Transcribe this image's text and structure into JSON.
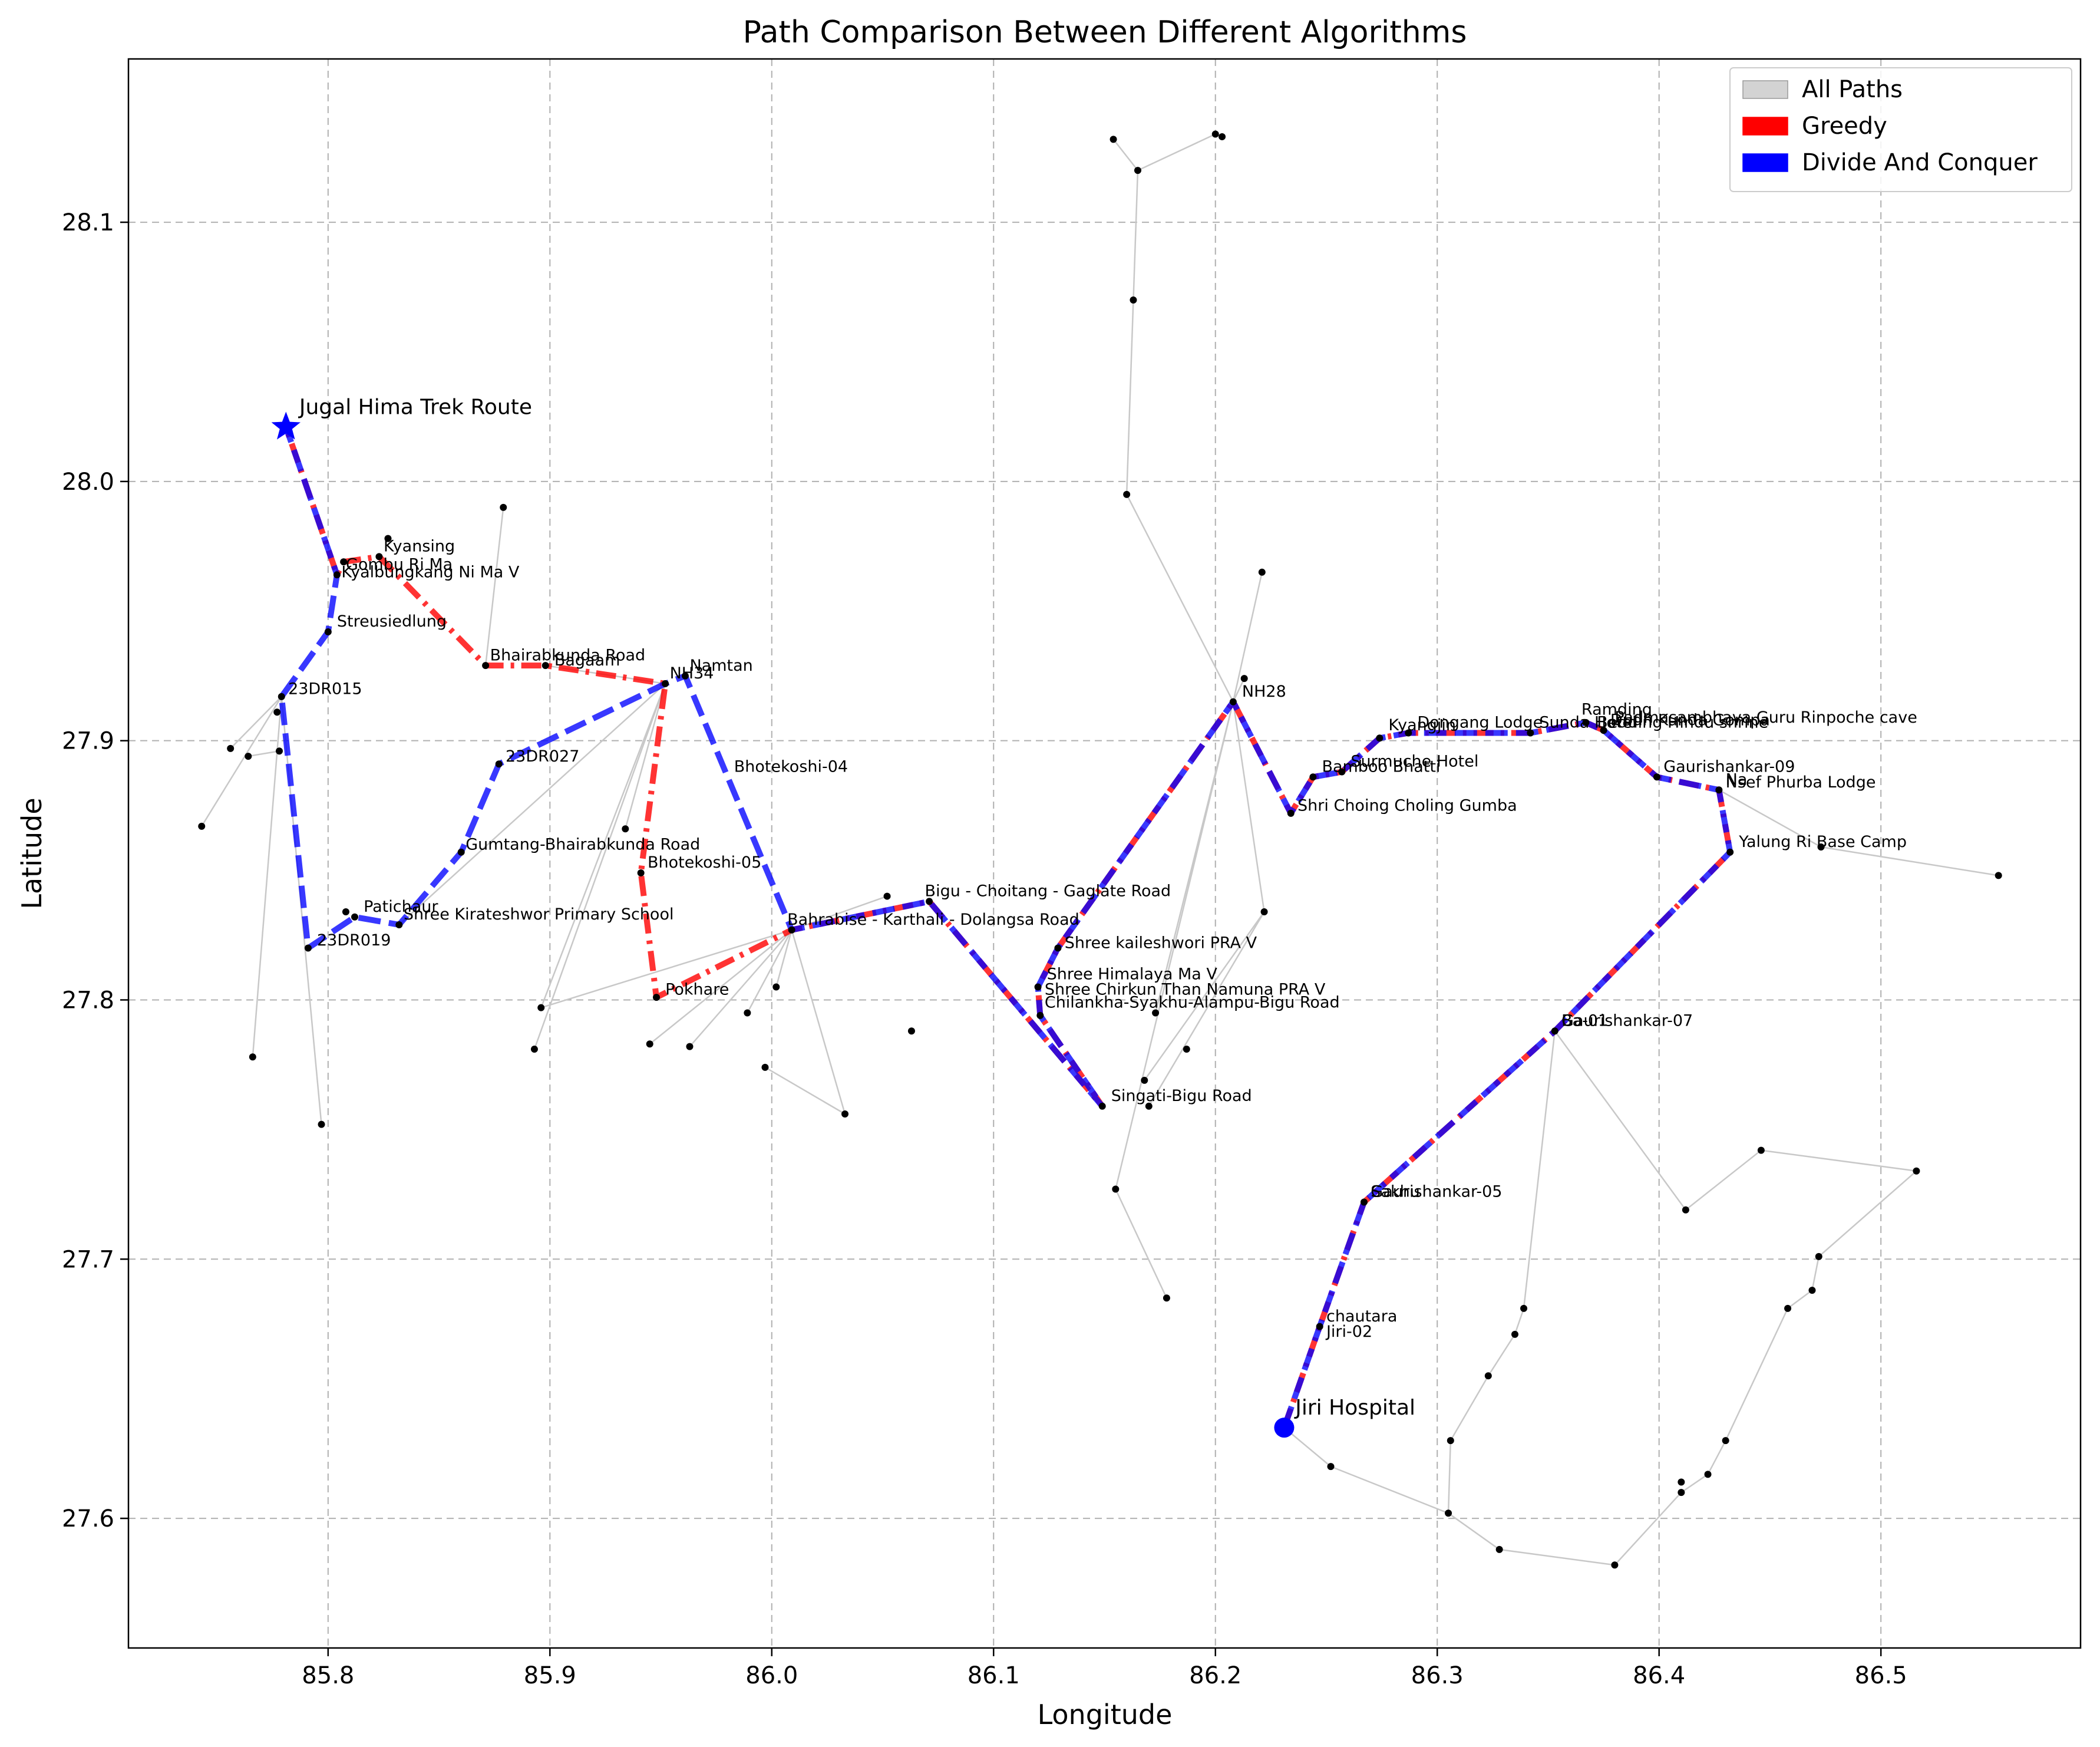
{
  "chart_data": {
    "type": "network",
    "title": "Path Comparison Between Different Algorithms",
    "xlabel": "Longitude",
    "ylabel": "Latitude",
    "xlim": [
      85.71,
      86.59
    ],
    "ylim": [
      27.55,
      28.163
    ],
    "xticks": [
      85.8,
      85.9,
      86.0,
      86.1,
      86.2,
      86.3,
      86.4,
      86.5
    ],
    "yticks": [
      27.6,
      27.7,
      27.8,
      27.9,
      28.0,
      28.1
    ],
    "grid": true,
    "legend_position": "top-right",
    "legend": [
      {
        "label": "All Paths",
        "color": "#d3d3d3"
      },
      {
        "label": "Greedy",
        "color": "#ff0000"
      },
      {
        "label": "Divide And Conquer",
        "color": "#0000ff"
      }
    ],
    "start": {
      "label": "Jiri Hospital",
      "x": 86.231,
      "y": 27.635
    },
    "end": {
      "label": "Jugal Hima Trek Route",
      "x": 85.781,
      "y": 28.021
    },
    "greedy_path": [
      [
        86.231,
        27.635
      ],
      [
        86.247,
        27.674
      ],
      [
        86.267,
        27.722
      ],
      [
        86.353,
        27.788
      ],
      [
        86.432,
        27.857
      ],
      [
        86.427,
        27.881
      ],
      [
        86.399,
        27.886
      ],
      [
        86.375,
        27.904
      ],
      [
        86.367,
        27.907
      ],
      [
        86.342,
        27.903
      ],
      [
        86.287,
        27.903
      ],
      [
        86.274,
        27.901
      ],
      [
        86.257,
        27.888
      ],
      [
        86.244,
        27.886
      ],
      [
        86.234,
        27.872
      ],
      [
        86.208,
        27.915
      ],
      [
        86.129,
        27.82
      ],
      [
        86.12,
        27.805
      ],
      [
        86.121,
        27.794
      ],
      [
        86.149,
        27.759
      ],
      [
        86.071,
        27.838
      ],
      [
        86.009,
        27.827
      ],
      [
        85.948,
        27.801
      ],
      [
        85.941,
        27.849
      ],
      [
        85.952,
        27.922
      ],
      [
        85.898,
        27.929
      ],
      [
        85.871,
        27.929
      ],
      [
        85.823,
        27.971
      ],
      [
        85.807,
        27.969
      ],
      [
        85.804,
        27.964
      ],
      [
        85.781,
        28.021
      ]
    ],
    "dc_path": [
      [
        86.231,
        27.635
      ],
      [
        86.247,
        27.674
      ],
      [
        86.267,
        27.722
      ],
      [
        86.353,
        27.788
      ],
      [
        86.432,
        27.857
      ],
      [
        86.427,
        27.881
      ],
      [
        86.399,
        27.886
      ],
      [
        86.375,
        27.904
      ],
      [
        86.367,
        27.907
      ],
      [
        86.342,
        27.903
      ],
      [
        86.287,
        27.903
      ],
      [
        86.274,
        27.901
      ],
      [
        86.257,
        27.888
      ],
      [
        86.244,
        27.886
      ],
      [
        86.234,
        27.872
      ],
      [
        86.208,
        27.915
      ],
      [
        86.129,
        27.82
      ],
      [
        86.12,
        27.805
      ],
      [
        86.121,
        27.794
      ],
      [
        86.149,
        27.759
      ],
      [
        86.071,
        27.838
      ],
      [
        86.009,
        27.827
      ],
      [
        85.961,
        27.925
      ],
      [
        85.952,
        27.922
      ],
      [
        85.877,
        27.891
      ],
      [
        85.86,
        27.857
      ],
      [
        85.832,
        27.829
      ],
      [
        85.812,
        27.832
      ],
      [
        85.791,
        27.82
      ],
      [
        85.779,
        27.917
      ],
      [
        85.8,
        27.942
      ],
      [
        85.804,
        27.964
      ],
      [
        85.781,
        28.021
      ]
    ],
    "edges": [
      [
        [
          85.743,
          27.867
        ],
        [
          85.779,
          27.917
        ]
      ],
      [
        [
          85.756,
          27.897
        ],
        [
          85.779,
          27.917
        ]
      ],
      [
        [
          85.766,
          27.778
        ],
        [
          85.779,
          27.917
        ]
      ],
      [
        [
          85.779,
          27.917
        ],
        [
          85.797,
          27.752
        ]
      ],
      [
        [
          85.778,
          27.896
        ],
        [
          85.764,
          27.894
        ]
      ],
      [
        [
          85.879,
          27.99
        ],
        [
          85.871,
          27.929
        ]
      ],
      [
        [
          85.898,
          27.929
        ],
        [
          85.952,
          27.922
        ]
      ],
      [
        [
          85.952,
          27.922
        ],
        [
          85.896,
          27.797
        ]
      ],
      [
        [
          85.952,
          27.922
        ],
        [
          85.893,
          27.781
        ]
      ],
      [
        [
          85.952,
          27.922
        ],
        [
          85.934,
          27.866
        ]
      ],
      [
        [
          85.952,
          27.922
        ],
        [
          85.832,
          27.829
        ]
      ],
      [
        [
          85.896,
          27.797
        ],
        [
          86.009,
          27.827
        ]
      ],
      [
        [
          85.945,
          27.783
        ],
        [
          86.009,
          27.827
        ]
      ],
      [
        [
          85.963,
          27.782
        ],
        [
          86.009,
          27.827
        ]
      ],
      [
        [
          85.989,
          27.795
        ],
        [
          86.009,
          27.827
        ]
      ],
      [
        [
          85.997,
          27.774
        ],
        [
          86.033,
          27.756
        ]
      ],
      [
        [
          86.033,
          27.756
        ],
        [
          86.009,
          27.827
        ]
      ],
      [
        [
          86.002,
          27.805
        ],
        [
          86.009,
          27.827
        ]
      ],
      [
        [
          86.052,
          27.84
        ],
        [
          86.009,
          27.827
        ]
      ],
      [
        [
          86.16,
          27.995
        ],
        [
          86.163,
          28.07
        ]
      ],
      [
        [
          86.163,
          28.07
        ],
        [
          86.165,
          28.12
        ]
      ],
      [
        [
          86.165,
          28.12
        ],
        [
          86.154,
          28.132
        ]
      ],
      [
        [
          86.165,
          28.12
        ],
        [
          86.2,
          28.134
        ]
      ],
      [
        [
          86.16,
          27.995
        ],
        [
          86.208,
          27.915
        ]
      ],
      [
        [
          86.221,
          27.965
        ],
        [
          86.208,
          27.915
        ]
      ],
      [
        [
          86.213,
          27.924
        ],
        [
          86.208,
          27.915
        ]
      ],
      [
        [
          86.208,
          27.915
        ],
        [
          86.222,
          27.834
        ]
      ],
      [
        [
          86.208,
          27.915
        ],
        [
          86.173,
          27.795
        ]
      ],
      [
        [
          86.208,
          27.915
        ],
        [
          86.155,
          27.727
        ]
      ],
      [
        [
          86.222,
          27.834
        ],
        [
          86.168,
          27.769
        ]
      ],
      [
        [
          86.222,
          27.834
        ],
        [
          86.17,
          27.759
        ]
      ],
      [
        [
          86.155,
          27.727
        ],
        [
          86.178,
          27.685
        ]
      ],
      [
        [
          86.427,
          27.881
        ],
        [
          86.473,
          27.859
        ]
      ],
      [
        [
          86.473,
          27.859
        ],
        [
          86.553,
          27.848
        ]
      ],
      [
        [
          86.353,
          27.788
        ],
        [
          86.412,
          27.719
        ]
      ],
      [
        [
          86.412,
          27.719
        ],
        [
          86.446,
          27.742
        ]
      ],
      [
        [
          86.446,
          27.742
        ],
        [
          86.516,
          27.734
        ]
      ],
      [
        [
          86.516,
          27.734
        ],
        [
          86.472,
          27.701
        ]
      ],
      [
        [
          86.472,
          27.701
        ],
        [
          86.469,
          27.688
        ]
      ],
      [
        [
          86.469,
          27.688
        ],
        [
          86.458,
          27.681
        ]
      ],
      [
        [
          86.458,
          27.681
        ],
        [
          86.43,
          27.63
        ]
      ],
      [
        [
          86.43,
          27.63
        ],
        [
          86.422,
          27.617
        ]
      ],
      [
        [
          86.422,
          27.617
        ],
        [
          86.41,
          27.61
        ]
      ],
      [
        [
          86.353,
          27.788
        ],
        [
          86.339,
          27.681
        ]
      ],
      [
        [
          86.339,
          27.681
        ],
        [
          86.335,
          27.671
        ]
      ],
      [
        [
          86.335,
          27.671
        ],
        [
          86.323,
          27.655
        ]
      ],
      [
        [
          86.323,
          27.655
        ],
        [
          86.306,
          27.63
        ]
      ],
      [
        [
          86.306,
          27.63
        ],
        [
          86.305,
          27.602
        ]
      ],
      [
        [
          86.231,
          27.635
        ],
        [
          86.252,
          27.62
        ]
      ],
      [
        [
          86.252,
          27.62
        ],
        [
          86.305,
          27.602
        ]
      ],
      [
        [
          86.305,
          27.602
        ],
        [
          86.328,
          27.588
        ]
      ],
      [
        [
          86.328,
          27.588
        ],
        [
          86.38,
          27.582
        ]
      ],
      [
        [
          86.38,
          27.582
        ],
        [
          86.41,
          27.61
        ]
      ]
    ],
    "nodes": [
      [
        85.743,
        27.867
      ],
      [
        85.756,
        27.897
      ],
      [
        85.764,
        27.894
      ],
      [
        85.778,
        27.896
      ],
      [
        85.777,
        27.911
      ],
      [
        85.766,
        27.778
      ],
      [
        85.797,
        27.752
      ],
      [
        85.808,
        27.834
      ],
      [
        85.879,
        27.99
      ],
      [
        85.827,
        27.978
      ],
      [
        85.893,
        27.781
      ],
      [
        85.896,
        27.797
      ],
      [
        85.934,
        27.866
      ],
      [
        85.945,
        27.783
      ],
      [
        85.963,
        27.782
      ],
      [
        85.989,
        27.795
      ],
      [
        85.997,
        27.774
      ],
      [
        86.002,
        27.805
      ],
      [
        86.033,
        27.756
      ],
      [
        86.052,
        27.84
      ],
      [
        86.063,
        27.788
      ],
      [
        86.154,
        28.132
      ],
      [
        86.165,
        28.12
      ],
      [
        86.2,
        28.134
      ],
      [
        86.203,
        28.133
      ],
      [
        86.163,
        28.07
      ],
      [
        86.16,
        27.995
      ],
      [
        86.221,
        27.965
      ],
      [
        86.213,
        27.924
      ],
      [
        86.222,
        27.834
      ],
      [
        86.173,
        27.795
      ],
      [
        86.187,
        27.781
      ],
      [
        86.168,
        27.769
      ],
      [
        86.17,
        27.759
      ],
      [
        86.155,
        27.727
      ],
      [
        86.178,
        27.685
      ],
      [
        86.473,
        27.859
      ],
      [
        86.553,
        27.848
      ],
      [
        86.412,
        27.719
      ],
      [
        86.446,
        27.742
      ],
      [
        86.516,
        27.734
      ],
      [
        86.472,
        27.701
      ],
      [
        86.469,
        27.688
      ],
      [
        86.458,
        27.681
      ],
      [
        86.43,
        27.63
      ],
      [
        86.422,
        27.617
      ],
      [
        86.41,
        27.614
      ],
      [
        86.41,
        27.61
      ],
      [
        86.339,
        27.681
      ],
      [
        86.335,
        27.671
      ],
      [
        86.323,
        27.655
      ],
      [
        86.306,
        27.63
      ],
      [
        86.305,
        27.602
      ],
      [
        86.252,
        27.62
      ],
      [
        86.328,
        27.588
      ],
      [
        86.38,
        27.582
      ],
      [
        85.961,
        27.925
      ],
      [
        85.941,
        27.849
      ],
      [
        85.948,
        27.801
      ],
      [
        86.009,
        27.827
      ],
      [
        86.071,
        27.838
      ],
      [
        86.149,
        27.759
      ],
      [
        86.121,
        27.794
      ],
      [
        86.12,
        27.805
      ],
      [
        86.129,
        27.82
      ],
      [
        86.208,
        27.915
      ],
      [
        86.234,
        27.872
      ],
      [
        86.244,
        27.886
      ],
      [
        86.257,
        27.888
      ],
      [
        86.274,
        27.901
      ],
      [
        86.287,
        27.903
      ],
      [
        86.342,
        27.903
      ],
      [
        86.367,
        27.907
      ],
      [
        86.375,
        27.904
      ],
      [
        86.399,
        27.886
      ],
      [
        86.427,
        27.881
      ],
      [
        86.432,
        27.857
      ],
      [
        86.353,
        27.788
      ],
      [
        86.267,
        27.722
      ],
      [
        86.247,
        27.674
      ],
      [
        85.877,
        27.891
      ],
      [
        85.86,
        27.857
      ],
      [
        85.832,
        27.829
      ],
      [
        85.812,
        27.832
      ],
      [
        85.791,
        27.82
      ],
      [
        85.779,
        27.917
      ],
      [
        85.8,
        27.942
      ],
      [
        85.804,
        27.964
      ],
      [
        85.807,
        27.969
      ],
      [
        85.823,
        27.971
      ],
      [
        85.871,
        27.929
      ],
      [
        85.898,
        27.929
      ],
      [
        85.952,
        27.922
      ]
    ],
    "labels": [
      {
        "text": "Jugal Hima Trek Route",
        "x": 85.787,
        "y": 28.026,
        "big": true
      },
      {
        "text": "Jiri Hospital",
        "x": 86.236,
        "y": 27.64,
        "big": true
      },
      {
        "text": "Kyansing",
        "x": 85.825,
        "y": 27.973
      },
      {
        "text": "Gombu Ri Ma",
        "x": 85.808,
        "y": 27.966
      },
      {
        "text": "Kyalbungkang Ni Ma V",
        "x": 85.806,
        "y": 27.963
      },
      {
        "text": "Streusiedlung",
        "x": 85.804,
        "y": 27.944
      },
      {
        "text": "23DR015",
        "x": 85.782,
        "y": 27.918
      },
      {
        "text": "Bhairabkunda Road",
        "x": 85.873,
        "y": 27.931
      },
      {
        "text": "Bagaam",
        "x": 85.902,
        "y": 27.929
      },
      {
        "text": "NH34",
        "x": 85.954,
        "y": 27.924
      },
      {
        "text": "Namtan",
        "x": 85.963,
        "y": 27.927
      },
      {
        "text": "Bhotekoshi-04",
        "x": 85.983,
        "y": 27.888
      },
      {
        "text": "23DR027",
        "x": 85.88,
        "y": 27.892
      },
      {
        "text": "Gumtang-Bhairabkunda Road",
        "x": 85.862,
        "y": 27.858
      },
      {
        "text": "Bhotekoshi-05",
        "x": 85.944,
        "y": 27.851
      },
      {
        "text": "Patichaur",
        "x": 85.816,
        "y": 27.834
      },
      {
        "text": "Shree Kirateshwor Primary School",
        "x": 85.834,
        "y": 27.831
      },
      {
        "text": "23DR019",
        "x": 85.795,
        "y": 27.821
      },
      {
        "text": "Pokhare",
        "x": 85.952,
        "y": 27.802
      },
      {
        "text": "Bahrabise - Karthali - Dolangsa Road",
        "x": 86.007,
        "y": 27.829
      },
      {
        "text": "Bigu - Choitang - Gaglate Road",
        "x": 86.069,
        "y": 27.84
      },
      {
        "text": "Shree kaileshwori PRA V",
        "x": 86.132,
        "y": 27.82
      },
      {
        "text": "Shree Himalaya Ma V",
        "x": 86.124,
        "y": 27.808
      },
      {
        "text": "Shree Chirkun Than Namuna PRA V",
        "x": 86.123,
        "y": 27.802
      },
      {
        "text": "Chilankha-Syakhu-Alampu-Bigu Road",
        "x": 86.123,
        "y": 27.797
      },
      {
        "text": "Singati-Bigu Road",
        "x": 86.153,
        "y": 27.761
      },
      {
        "text": "NH28",
        "x": 86.212,
        "y": 27.917
      },
      {
        "text": "Shri Choing Choling Gumba",
        "x": 86.237,
        "y": 27.873
      },
      {
        "text": "Bamboo Bhatti",
        "x": 86.248,
        "y": 27.888
      },
      {
        "text": "Surmuche Hotel",
        "x": 86.261,
        "y": 27.89
      },
      {
        "text": "Kyangjin",
        "x": 86.278,
        "y": 27.904
      },
      {
        "text": "Dongang Lodge",
        "x": 86.291,
        "y": 27.905
      },
      {
        "text": "Sunda Hotel",
        "x": 86.346,
        "y": 27.905
      },
      {
        "text": "Ramding",
        "x": 86.365,
        "y": 27.91
      },
      {
        "text": "Bedding Hindu shrine",
        "x": 86.372,
        "y": 27.905
      },
      {
        "text": "Dudh Kunda Gompa",
        "x": 86.378,
        "y": 27.906
      },
      {
        "text": "Padmasambhava Guru Rinpoche cave",
        "x": 86.38,
        "y": 27.907
      },
      {
        "text": "Gaurishankar-09",
        "x": 86.402,
        "y": 27.888
      },
      {
        "text": "Na",
        "x": 86.43,
        "y": 27.883
      },
      {
        "text": "Nsef Phurba Lodge",
        "x": 86.43,
        "y": 27.882
      },
      {
        "text": "Yalung Ri Base Camp",
        "x": 86.436,
        "y": 27.859
      },
      {
        "text": "Gaurishankar-07",
        "x": 86.356,
        "y": 27.79
      },
      {
        "text": "Ba-01",
        "x": 86.356,
        "y": 27.79
      },
      {
        "text": "Gaurishankar-05",
        "x": 86.27,
        "y": 27.724
      },
      {
        "text": "Sakhu",
        "x": 86.27,
        "y": 27.724
      },
      {
        "text": "chautara",
        "x": 86.25,
        "y": 27.676
      },
      {
        "text": "Jiri-02",
        "x": 86.25,
        "y": 27.67
      }
    ]
  }
}
